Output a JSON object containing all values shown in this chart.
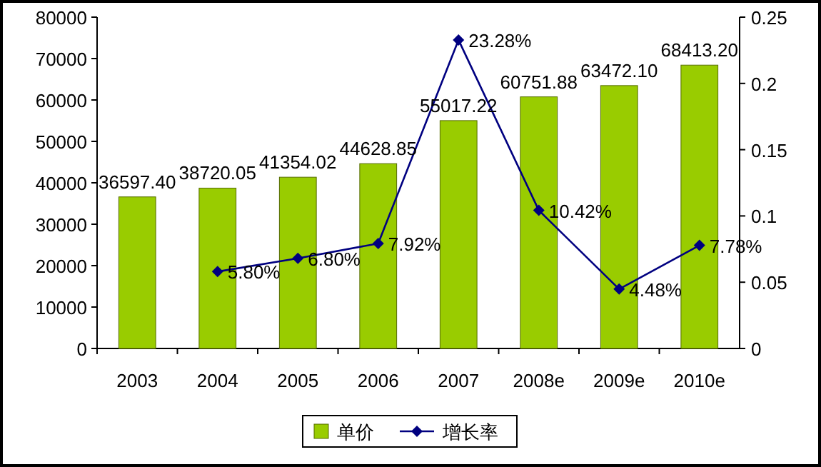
{
  "chart_data": {
    "type": "bar",
    "categories": [
      "2003",
      "2004",
      "2005",
      "2006",
      "2007",
      "2008e",
      "2009e",
      "2010e"
    ],
    "series": [
      {
        "name": "单价",
        "color": "#99cc00",
        "values": [
          36597.4,
          38720.05,
          41354.02,
          44628.85,
          55017.22,
          60751.88,
          63472.1,
          68413.2
        ],
        "value_labels": [
          "36597.40",
          "38720.05",
          "41354.02",
          "44628.85",
          "55017.22",
          "60751.88",
          "63472.10",
          "68413.20"
        ]
      },
      {
        "name": "增长率",
        "type": "line",
        "axis": "y2",
        "color": "#000080",
        "values": [
          null,
          0.058,
          0.068,
          0.0792,
          0.2328,
          0.1042,
          0.0448,
          0.0778
        ],
        "value_labels": [
          null,
          "5.80%",
          "6.80%",
          "7.92%",
          "23.28%",
          "10.42%",
          "4.48%",
          "7.78%"
        ]
      }
    ],
    "ylim": [
      0,
      80000
    ],
    "yticks": [
      0,
      10000,
      20000,
      30000,
      40000,
      50000,
      60000,
      70000,
      80000
    ],
    "y2lim": [
      0,
      0.25
    ],
    "y2ticks": [
      0,
      0.05,
      0.1,
      0.15,
      0.2,
      0.25
    ],
    "marker": "diamond",
    "legend": "bottom"
  }
}
